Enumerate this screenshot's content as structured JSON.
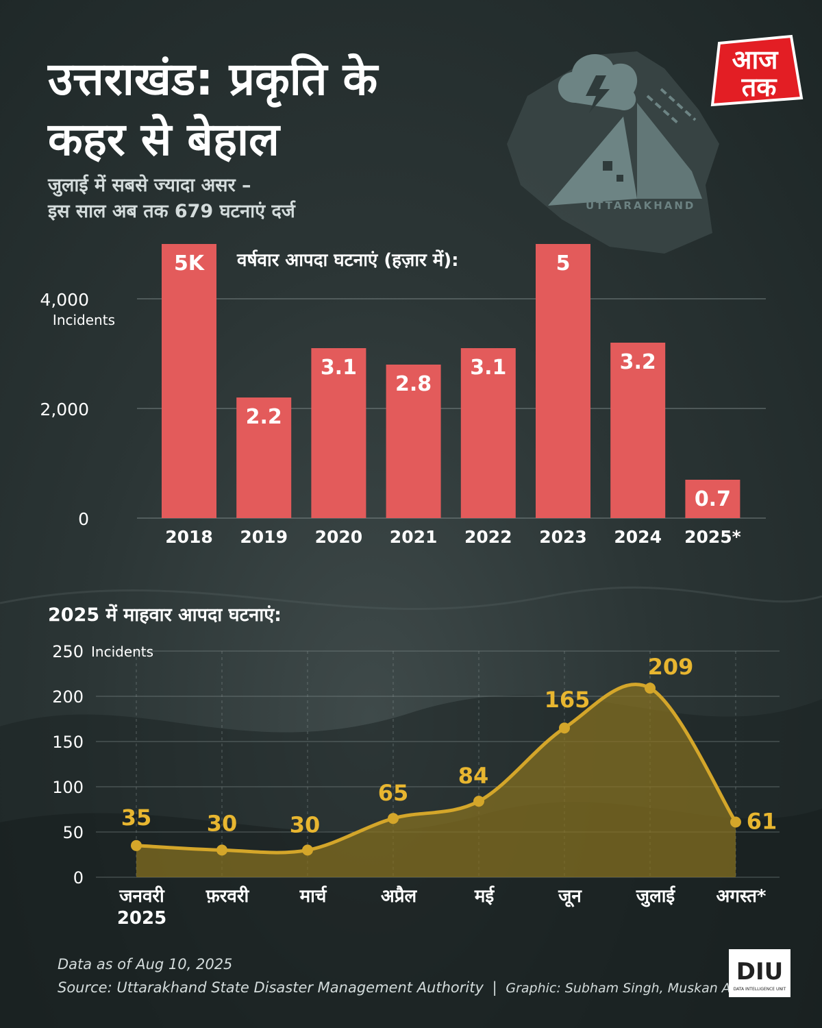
{
  "header": {
    "title_line1": "उत्तराखंड: प्रकृति के",
    "title_line2": "कहर से बेहाल",
    "subtitle_line1": "जुलाई में सबसे ज्यादा असर –",
    "subtitle_line2": "इस साल अब तक 679 घटनाएं दर्ज"
  },
  "map": {
    "label": "UTTARAKHAND",
    "icon": "storm-cloud-landslide-icon"
  },
  "logo": {
    "line1": "आज",
    "line2": "तक",
    "color": "#e31e24"
  },
  "colors": {
    "bar": "#e35b5b",
    "line": "#d4a62a",
    "area": "#8a7420",
    "gridline": "#8a9696"
  },
  "chart_data": [
    {
      "type": "bar",
      "title": "वर्षवार आपदा घटनाएं (हज़ार में):",
      "ylabel": "Incidents",
      "ylim": [
        0,
        5000
      ],
      "yticks": [
        "0",
        "2,000",
        "4,000"
      ],
      "grid": true,
      "categories": [
        "2018",
        "2019",
        "2020",
        "2021",
        "2022",
        "2023",
        "2024",
        "2025*"
      ],
      "values": [
        5000,
        2200,
        3100,
        2800,
        3100,
        5000,
        3200,
        700
      ],
      "data_labels": [
        "5K",
        "2.2",
        "3.1",
        "2.8",
        "3.1",
        "5",
        "3.2",
        "0.7"
      ]
    },
    {
      "type": "area",
      "title": "2025 में माहवार आपदा घटनाएं:",
      "ylabel": "Incidents",
      "ylim": [
        0,
        250
      ],
      "yticks": [
        "0",
        "50",
        "100",
        "150",
        "200",
        "250"
      ],
      "grid": true,
      "categories": [
        "जनवरी 2025",
        "फ़रवरी",
        "मार्च",
        "अप्रैल",
        "मई",
        "जून",
        "जुलाई",
        "अगस्त*"
      ],
      "values": [
        35,
        30,
        30,
        65,
        84,
        165,
        209,
        61
      ],
      "data_labels": [
        "35",
        "30",
        "30",
        "65",
        "84",
        "165",
        "209",
        "61"
      ]
    }
  ],
  "footer": {
    "data_note": "Data as of Aug 10, 2025",
    "source": "Source: Uttarakhand State Disaster Management Authority",
    "graphic": "Graphic: Subham Singh, Muskan Arora",
    "diu_label": "DIU",
    "diu_sub": "DATA INTELLIGENCE UNIT"
  }
}
